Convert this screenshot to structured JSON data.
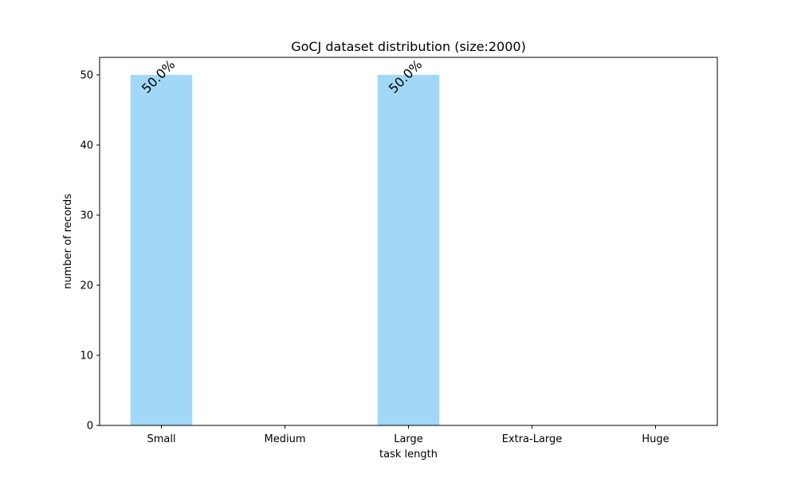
{
  "chart_data": {
    "type": "bar",
    "title": "GoCJ dataset distribution (size:2000)",
    "xlabel": "task length",
    "ylabel": "number of records",
    "categories": [
      "Small",
      "Medium",
      "Large",
      "Extra-Large",
      "Huge"
    ],
    "values": [
      50,
      0,
      50,
      0,
      0
    ],
    "bar_labels": [
      "50.0%",
      "",
      "50.0%",
      "",
      ""
    ],
    "ylim": [
      0,
      52.5
    ],
    "yticks": [
      0,
      10,
      20,
      30,
      40,
      50
    ],
    "grid": false,
    "legend": "none",
    "bar_color": "#a1d8f7"
  }
}
